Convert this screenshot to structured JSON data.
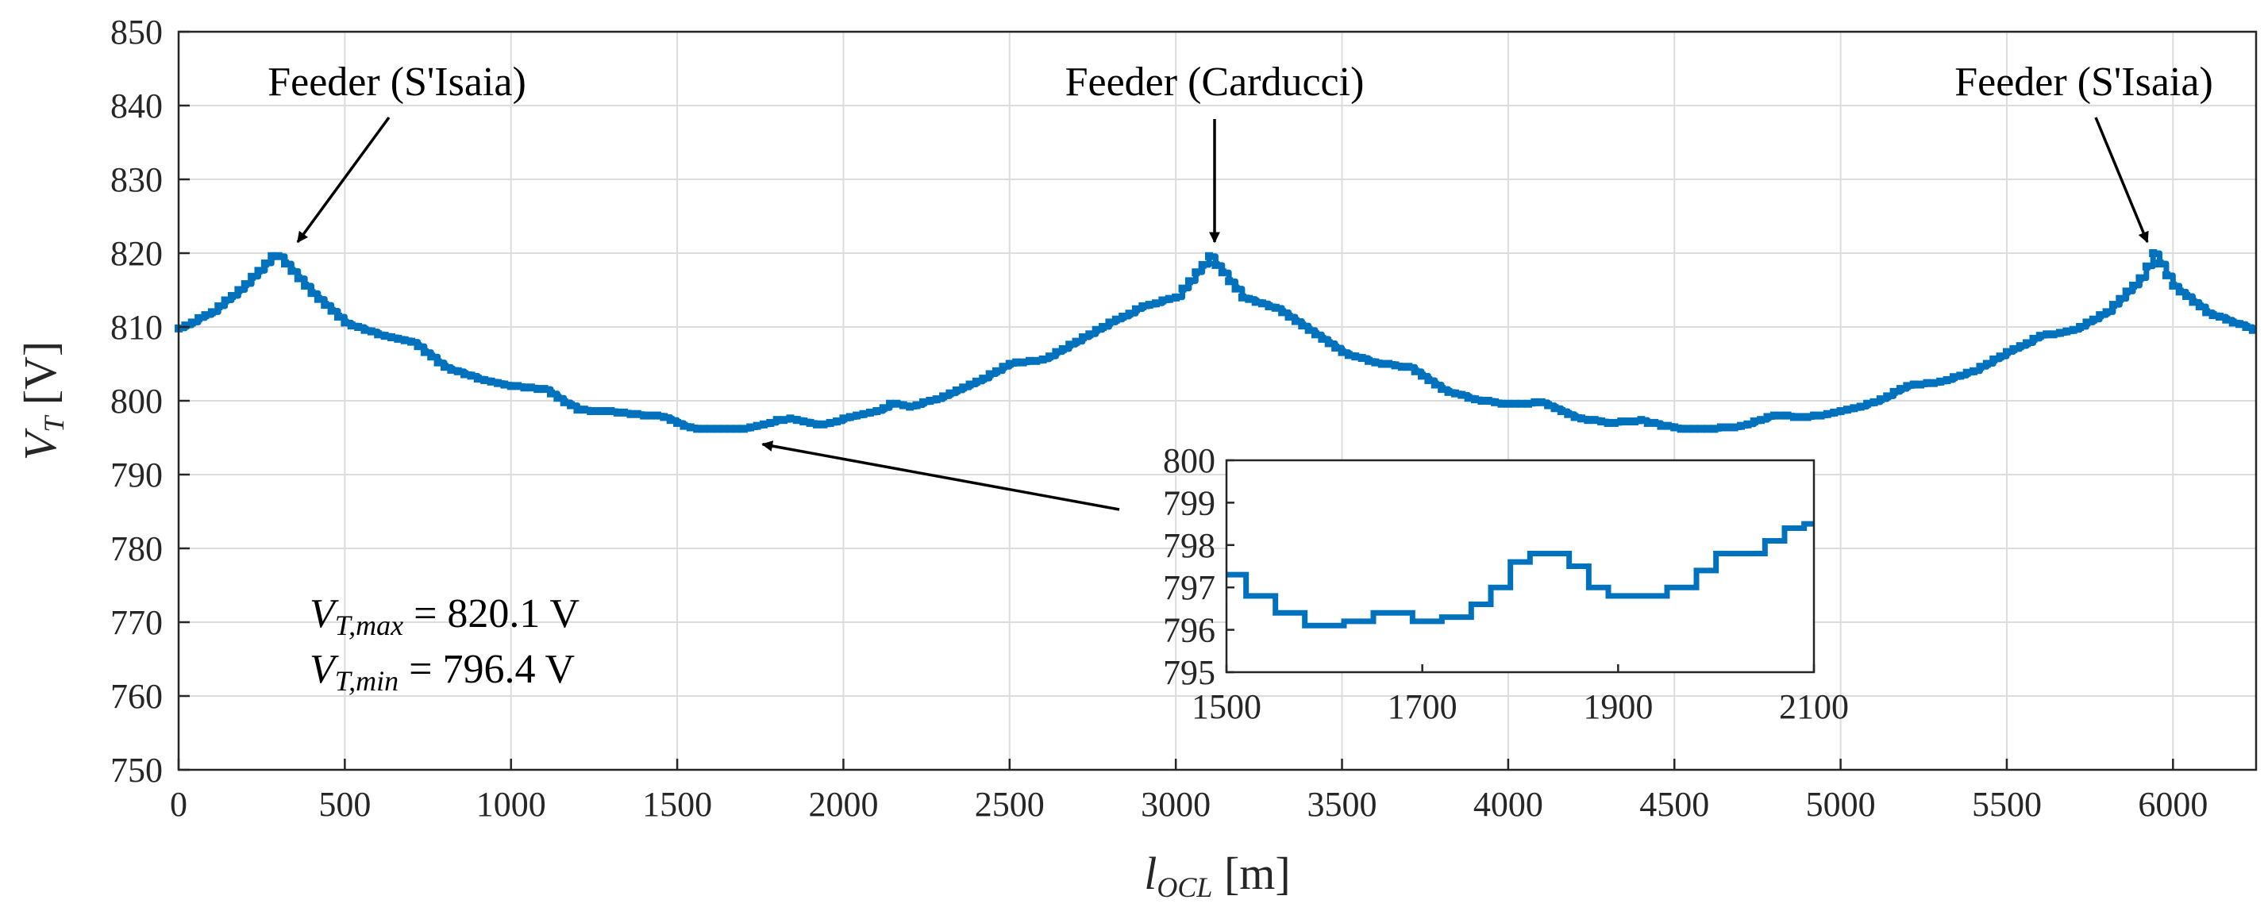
{
  "chart_data": {
    "type": "line",
    "title": "",
    "xlabel": {
      "main": "l",
      "sub": "OCL",
      "unit": "[m]"
    },
    "ylabel": {
      "main": "V",
      "sub": "T",
      "unit": "[V]"
    },
    "xlim": [
      0,
      6250
    ],
    "ylim": [
      750,
      850
    ],
    "xticks": [
      0,
      500,
      1000,
      1500,
      2000,
      2500,
      3000,
      3500,
      4000,
      4500,
      5000,
      5500,
      6000
    ],
    "yticks": [
      750,
      760,
      770,
      780,
      790,
      800,
      810,
      820,
      830,
      840,
      850
    ],
    "grid": true,
    "line_color": "#0072BD",
    "series": [
      {
        "name": "V_T",
        "x": [
          0,
          100,
          200,
          290,
          400,
          500,
          600,
          700,
          800,
          900,
          1000,
          1100,
          1200,
          1300,
          1400,
          1450,
          1500,
          1550,
          1600,
          1650,
          1700,
          1750,
          1800,
          1850,
          1900,
          1950,
          2000,
          2100,
          2150,
          2200,
          2300,
          2400,
          2500,
          2600,
          2700,
          2800,
          2900,
          3000,
          3100,
          3200,
          3300,
          3400,
          3500,
          3600,
          3700,
          3800,
          3900,
          4000,
          4100,
          4200,
          4300,
          4400,
          4500,
          4600,
          4700,
          4800,
          4900,
          5000,
          5100,
          5200,
          5300,
          5400,
          5500,
          5600,
          5700,
          5800,
          5900,
          5940,
          6000,
          6100,
          6250
        ],
        "y": [
          809.8,
          812.0,
          815.8,
          820.0,
          814.5,
          810.5,
          809.0,
          808.0,
          804.5,
          803.0,
          802.0,
          801.5,
          798.8,
          798.5,
          798.0,
          798.0,
          797.0,
          796.2,
          796.1,
          796.3,
          796.2,
          796.6,
          797.4,
          797.6,
          796.9,
          796.8,
          797.6,
          798.5,
          799.8,
          799.2,
          800.5,
          802.5,
          805.0,
          805.5,
          808.0,
          810.5,
          812.8,
          814.0,
          819.6,
          814.0,
          812.5,
          809.5,
          806.5,
          805.2,
          804.5,
          801.5,
          800.2,
          799.5,
          799.8,
          797.8,
          797.0,
          797.3,
          796.3,
          796.2,
          796.5,
          798.0,
          797.8,
          798.5,
          799.8,
          802.0,
          802.5,
          804.0,
          806.5,
          808.8,
          809.5,
          812.0,
          816.5,
          820.0,
          815.5,
          812.0,
          809.5
        ]
      }
    ],
    "annotations": [
      {
        "text": "Feeder (S'Isaia)",
        "x": 290,
        "y": 820
      },
      {
        "text": "Feeder (Carducci)",
        "x": 3100,
        "y": 819.6
      },
      {
        "text": "Feeder (S'Isaia)",
        "x": 5940,
        "y": 820
      }
    ],
    "stats": {
      "max": {
        "main": "V",
        "sub": "T,max",
        "rest": " = 820.1 V"
      },
      "min": {
        "main": "V",
        "sub": "T,min",
        "rest": " = 796.4 V"
      }
    },
    "inset": {
      "xlim": [
        1500,
        2100
      ],
      "ylim": [
        795,
        800
      ],
      "xticks": [
        1500,
        1700,
        1900,
        2100
      ],
      "yticks": [
        795,
        796,
        797,
        798,
        799,
        800
      ],
      "zoom_target": {
        "x": 1900,
        "y": 796.8
      },
      "step_x": [
        1500,
        1520,
        1550,
        1580,
        1620,
        1650,
        1690,
        1720,
        1750,
        1770,
        1790,
        1810,
        1850,
        1870,
        1890,
        1920,
        1950,
        1980,
        2000,
        2030,
        2050,
        2070,
        2090,
        2100
      ],
      "step_y": [
        797.3,
        796.8,
        796.4,
        796.1,
        796.2,
        796.4,
        796.2,
        796.3,
        796.6,
        797.0,
        797.6,
        797.8,
        797.5,
        797.0,
        796.8,
        796.8,
        797.0,
        797.4,
        797.8,
        797.8,
        798.1,
        798.4,
        798.5,
        798.5
      ]
    }
  }
}
